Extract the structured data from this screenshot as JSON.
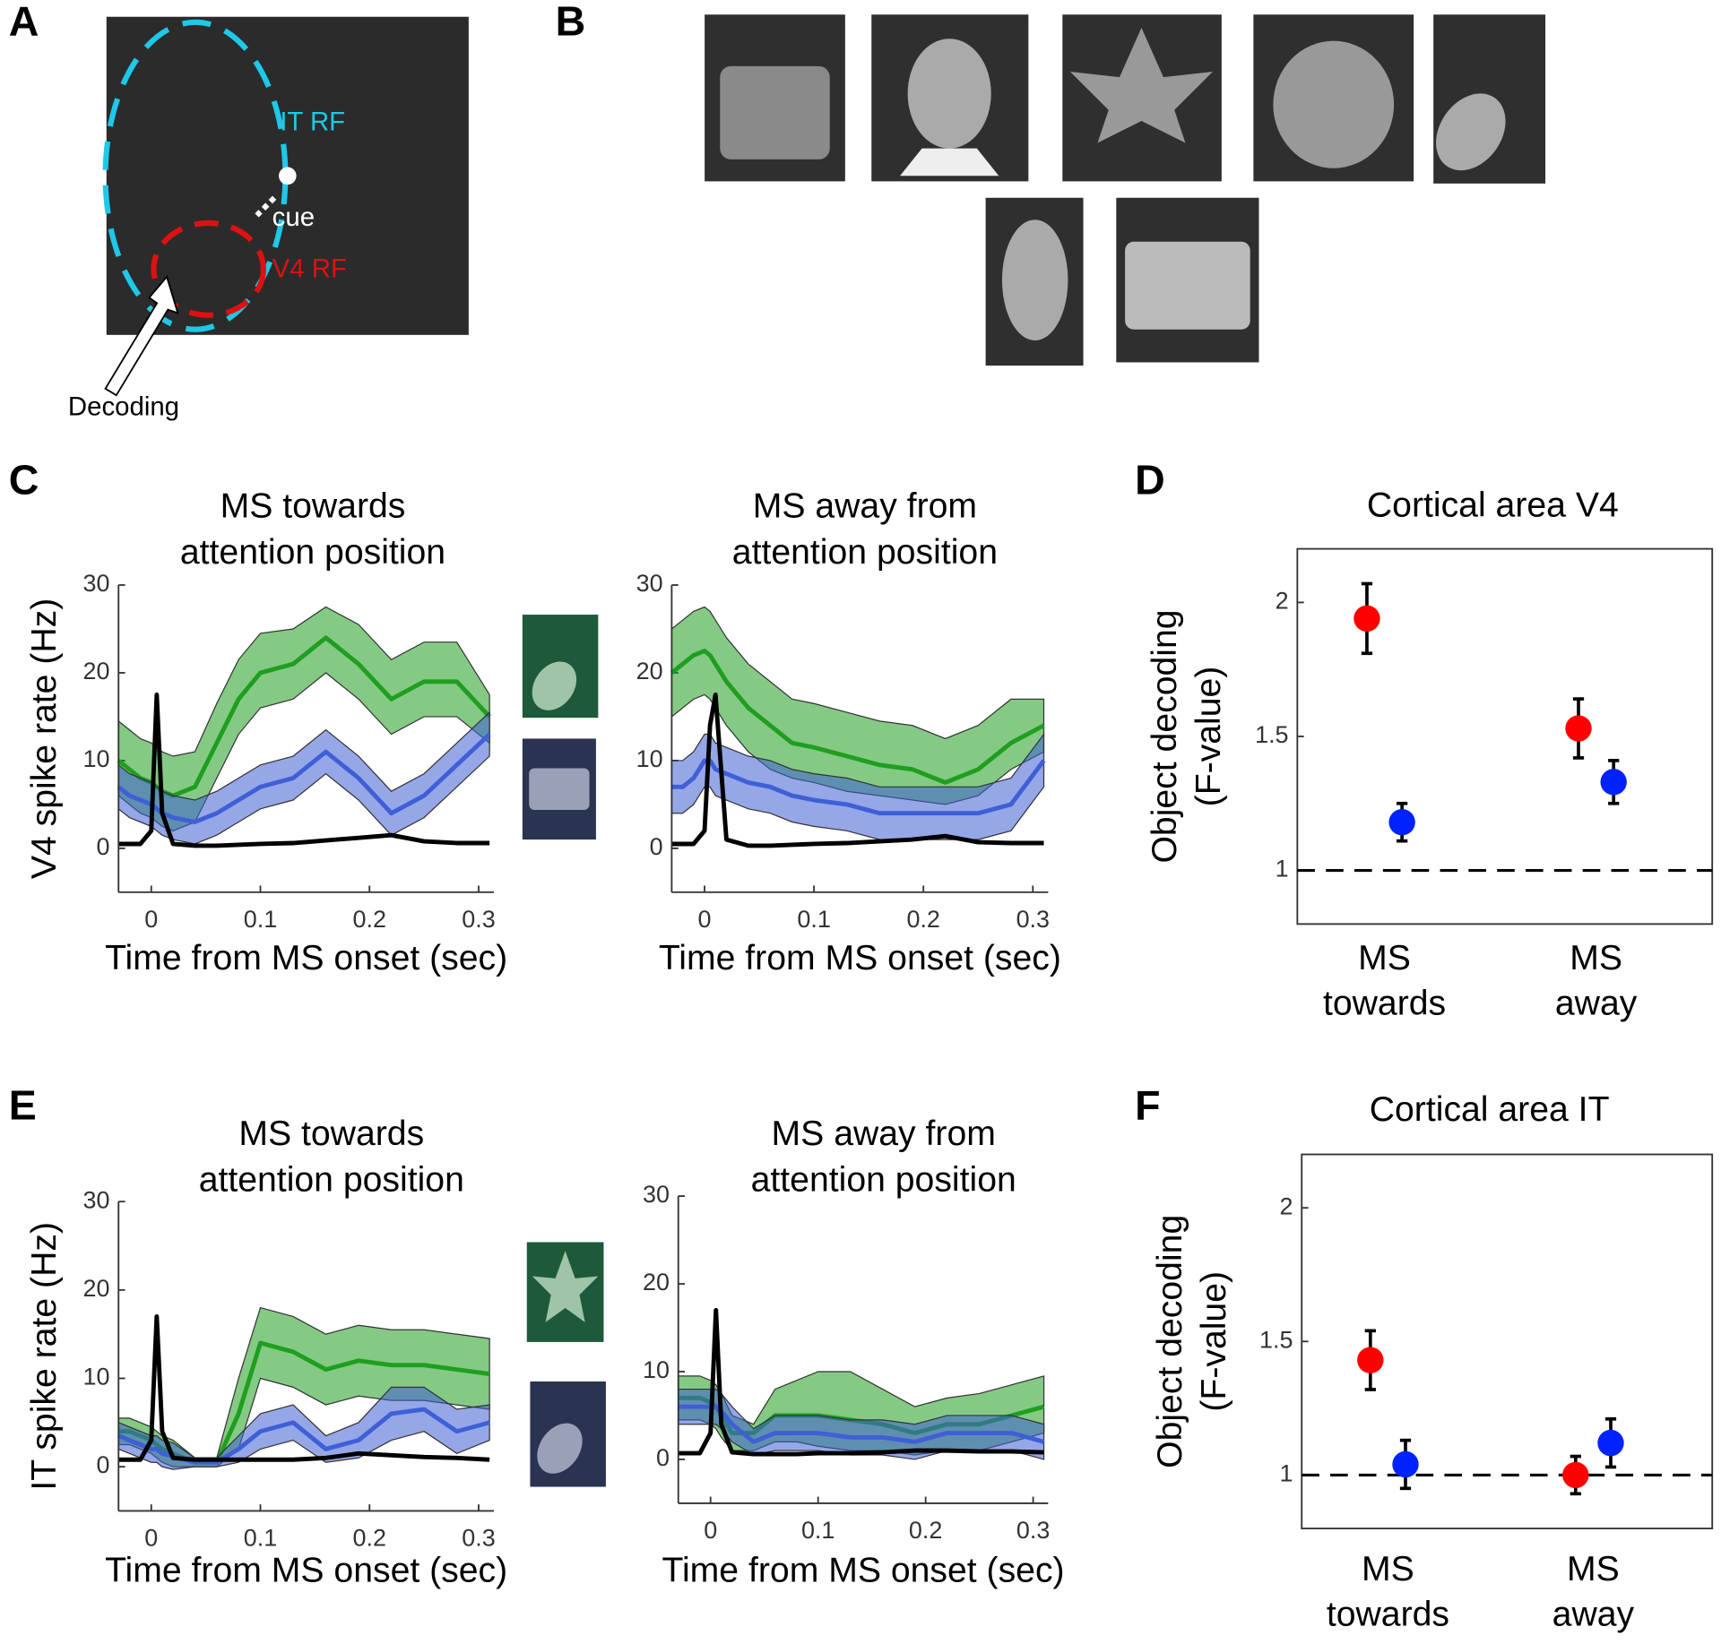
{
  "panel_labels": [
    "A",
    "B",
    "C",
    "D",
    "E",
    "F"
  ],
  "panel_a": {
    "labels": [
      "IT RF",
      "cue",
      "V4 RF",
      "Decoding"
    ]
  },
  "chart_data": [
    {
      "type": "line",
      "title": [
        "MS towards",
        "attention position"
      ],
      "x_label": "Time from MS onset (sec)",
      "y_label": "V4 spike rate (Hz)",
      "x": [
        -0.03,
        -0.02,
        -0.01,
        0,
        0.005,
        0.01,
        0.02,
        0.04,
        0.06,
        0.08,
        0.1,
        0.13,
        0.16,
        0.19,
        0.22,
        0.25,
        0.28,
        0.31
      ],
      "xlim": [
        -0.03,
        0.314
      ],
      "ylim": [
        -5,
        30
      ],
      "xticks": [
        0,
        0.1,
        0.2,
        0.3
      ],
      "yticks": [
        0,
        10,
        20,
        30
      ],
      "series": [
        {
          "color": "#1f9e1f",
          "values": [
            10,
            9,
            8,
            7.5,
            7,
            6.5,
            6,
            7,
            12,
            17,
            20,
            21,
            24,
            21,
            17,
            19,
            19,
            15
          ],
          "upper": [
            14.5,
            13.5,
            12.5,
            12,
            11.5,
            11,
            10.5,
            11,
            16.5,
            21.5,
            24.5,
            25,
            27.5,
            25.5,
            21.5,
            23.5,
            23.5,
            17.5
          ],
          "lower": [
            6,
            5,
            4,
            3.5,
            3,
            2.5,
            2,
            3,
            8,
            13,
            16,
            17,
            20,
            17,
            13,
            15,
            15,
            12
          ]
        },
        {
          "color": "#3f5fd6",
          "values": [
            7,
            6,
            5.5,
            5,
            4.5,
            4,
            3.5,
            3,
            4,
            5.5,
            7,
            8,
            11,
            8,
            4,
            6,
            9.5,
            13
          ],
          "upper": [
            9.5,
            8.5,
            8,
            7.5,
            7,
            6.5,
            6,
            5.5,
            6.5,
            8,
            9.5,
            10.5,
            13.5,
            10.5,
            6.5,
            8.5,
            12,
            15.5
          ],
          "lower": [
            4.5,
            3.5,
            3,
            2.5,
            2,
            1.5,
            1,
            0.5,
            1.5,
            3,
            4.5,
            5.5,
            8.5,
            5.5,
            1.5,
            3.5,
            7,
            10.5
          ]
        },
        {
          "color": "#000000",
          "values": [
            0.5,
            0.5,
            0.5,
            2,
            17.5,
            4,
            0.5,
            0.3,
            0.3,
            0.4,
            0.5,
            0.6,
            0.9,
            1.2,
            1.5,
            0.8,
            0.6,
            0.6
          ]
        }
      ]
    },
    {
      "type": "line",
      "title": [
        "MS away from",
        "attention position"
      ],
      "x_label": "Time from MS onset (sec)",
      "x": [
        -0.03,
        -0.02,
        -0.01,
        0,
        0.005,
        0.01,
        0.02,
        0.04,
        0.06,
        0.08,
        0.1,
        0.13,
        0.16,
        0.19,
        0.22,
        0.25,
        0.28,
        0.31
      ],
      "xlim": [
        -0.03,
        0.314
      ],
      "ylim": [
        -5,
        30
      ],
      "xticks": [
        0,
        0.1,
        0.2,
        0.3
      ],
      "yticks": [
        0,
        10,
        20,
        30
      ],
      "series": [
        {
          "color": "#1f9e1f",
          "values": [
            20,
            21,
            22,
            22.5,
            22,
            21,
            19,
            16,
            14,
            12,
            11.5,
            10.5,
            9.5,
            9,
            7.5,
            9,
            12,
            14
          ],
          "upper": [
            25,
            26,
            27,
            27.5,
            27,
            26,
            24,
            21,
            19,
            17,
            16.5,
            15.5,
            14.5,
            14,
            12.5,
            14,
            17,
            17
          ],
          "lower": [
            15,
            16,
            17,
            17.5,
            17,
            16,
            14,
            11,
            9,
            8,
            7.5,
            6.5,
            6,
            5.5,
            5,
            6,
            9,
            11
          ]
        },
        {
          "color": "#3f5fd6",
          "values": [
            7,
            7,
            8,
            10,
            10,
            9,
            8.5,
            7.5,
            7,
            6,
            5.5,
            5,
            4,
            4,
            4,
            4,
            5,
            10
          ],
          "upper": [
            10,
            10,
            11,
            13,
            13,
            12,
            11.5,
            10.5,
            10,
            9,
            8.5,
            8,
            7,
            7,
            7,
            7,
            8,
            13
          ],
          "lower": [
            4,
            4,
            5,
            7,
            7,
            6,
            5.5,
            4.5,
            4,
            3,
            2.5,
            2,
            1,
            1,
            1,
            1,
            2,
            7
          ]
        },
        {
          "color": "#000000",
          "values": [
            0.5,
            0.5,
            0.5,
            2,
            14,
            17.5,
            1,
            0.3,
            0.3,
            0.4,
            0.5,
            0.6,
            0.8,
            1,
            1.4,
            0.7,
            0.6,
            0.6
          ]
        }
      ]
    },
    {
      "type": "dot",
      "title": "Cortical area V4",
      "y_label": [
        "Object decoding",
        "(F-value)"
      ],
      "categories": [
        [
          "MS",
          "towards"
        ],
        [
          "MS",
          "away"
        ]
      ],
      "ylim": [
        0.8,
        2.2
      ],
      "yticks": [
        1,
        1.5,
        2
      ],
      "reference_line": 1,
      "series": [
        {
          "color": "#ff0000",
          "values": [
            1.94,
            1.53
          ],
          "errors": [
            0.13,
            0.11
          ]
        },
        {
          "color": "#0022ff",
          "values": [
            1.18,
            1.33
          ],
          "errors": [
            0.07,
            0.08
          ]
        }
      ]
    },
    {
      "type": "line",
      "title": [
        "MS towards",
        "attention position"
      ],
      "x_label": "Time from MS onset (sec)",
      "y_label": "IT spike rate (Hz)",
      "x": [
        -0.03,
        -0.02,
        -0.01,
        0,
        0.005,
        0.01,
        0.02,
        0.04,
        0.06,
        0.08,
        0.1,
        0.13,
        0.16,
        0.19,
        0.22,
        0.25,
        0.28,
        0.31
      ],
      "xlim": [
        -0.03,
        0.314
      ],
      "ylim": [
        -5,
        30
      ],
      "xticks": [
        0,
        0.1,
        0.2,
        0.3
      ],
      "yticks": [
        0,
        10,
        20,
        30
      ],
      "series": [
        {
          "color": "#1f9e1f",
          "values": [
            4,
            4,
            3.5,
            3,
            2.5,
            2,
            1.5,
            0.5,
            0.5,
            6,
            14,
            13,
            11,
            12,
            11.5,
            11.5,
            11,
            10.5
          ],
          "upper": [
            5.5,
            5.5,
            5,
            4.5,
            4,
            3.5,
            3,
            1,
            1,
            10,
            18,
            17,
            15,
            16,
            15.5,
            15.5,
            15,
            14.5
          ],
          "lower": [
            2.5,
            2.5,
            2,
            1.5,
            1,
            0.5,
            0,
            0,
            0,
            2,
            10,
            9,
            7,
            8,
            7.5,
            7.5,
            7,
            6.5
          ]
        },
        {
          "color": "#3f5fd6",
          "values": [
            3.5,
            3,
            2.5,
            2,
            2,
            1.5,
            1.2,
            0.5,
            0.5,
            2,
            4,
            5,
            2,
            3,
            6,
            6.5,
            4,
            5
          ],
          "upper": [
            5,
            4.5,
            4,
            3.5,
            3.5,
            3,
            2.7,
            1,
            1,
            3.5,
            6,
            7,
            3.5,
            5,
            9,
            9,
            6.5,
            7
          ],
          "lower": [
            2,
            1.5,
            1,
            0.5,
            0.5,
            0,
            -0.3,
            0,
            0,
            0.5,
            2,
            3,
            0.5,
            1,
            3,
            4,
            1.5,
            3
          ]
        },
        {
          "color": "#000000",
          "values": [
            0.8,
            0.8,
            0.8,
            3,
            17,
            4,
            1,
            0.8,
            0.8,
            0.8,
            0.8,
            0.8,
            1,
            1.5,
            1.3,
            1.1,
            1,
            0.8
          ]
        }
      ]
    },
    {
      "type": "line",
      "title": [
        "MS away from",
        "attention position"
      ],
      "x_label": "Time from MS onset (sec)",
      "x": [
        -0.03,
        -0.02,
        -0.01,
        0,
        0.005,
        0.01,
        0.02,
        0.04,
        0.06,
        0.08,
        0.1,
        0.13,
        0.16,
        0.19,
        0.22,
        0.25,
        0.28,
        0.31
      ],
      "xlim": [
        -0.03,
        0.314
      ],
      "ylim": [
        -5,
        30
      ],
      "xticks": [
        0,
        0.1,
        0.2,
        0.3
      ],
      "yticks": [
        0,
        10,
        20,
        30
      ],
      "series": [
        {
          "color": "#1f9e1f",
          "values": [
            7,
            7,
            7,
            6.5,
            6,
            5,
            3,
            3,
            5,
            5,
            5,
            4.5,
            4,
            3,
            4,
            4,
            5,
            6
          ],
          "upper": [
            9.5,
            9.5,
            9.5,
            9,
            8.5,
            7.5,
            5,
            4,
            8,
            9,
            10,
            10,
            8,
            6,
            7,
            7.5,
            8.5,
            9.5
          ],
          "lower": [
            4.5,
            4.5,
            4.5,
            4,
            3.5,
            2.5,
            1,
            1,
            2,
            2,
            1.5,
            1,
            1,
            0.5,
            1,
            1,
            2,
            3
          ]
        },
        {
          "color": "#3f5fd6",
          "values": [
            6,
            6,
            6,
            6,
            6,
            5.5,
            4,
            2,
            3,
            3,
            3,
            2.5,
            2.5,
            2,
            3,
            3,
            3,
            2
          ],
          "upper": [
            8,
            8,
            8,
            8,
            8,
            7.5,
            6,
            3.5,
            5,
            5,
            5,
            4.5,
            4.5,
            4,
            5,
            5,
            5,
            4
          ],
          "lower": [
            4,
            4,
            4,
            4,
            4,
            3.5,
            2,
            0.5,
            1,
            1,
            1,
            0.5,
            0.5,
            0,
            1,
            1,
            1,
            0
          ]
        },
        {
          "color": "#000000",
          "values": [
            0.7,
            0.7,
            0.7,
            3,
            17,
            4,
            0.8,
            0.6,
            0.6,
            0.6,
            0.7,
            0.7,
            0.8,
            1,
            1,
            0.9,
            0.9,
            0.8
          ]
        }
      ]
    },
    {
      "type": "dot",
      "title": "Cortical area IT",
      "y_label": [
        "Object decoding",
        "(F-value)"
      ],
      "categories": [
        [
          "MS",
          "towards"
        ],
        [
          "MS",
          "away"
        ]
      ],
      "ylim": [
        0.8,
        2.2
      ],
      "yticks": [
        1,
        1.5,
        2
      ],
      "reference_line": 1,
      "series": [
        {
          "color": "#ff0000",
          "values": [
            1.43,
            1.0
          ],
          "errors": [
            0.11,
            0.07
          ]
        },
        {
          "color": "#0022ff",
          "values": [
            1.04,
            1.12
          ],
          "errors": [
            0.09,
            0.09
          ]
        }
      ]
    }
  ]
}
